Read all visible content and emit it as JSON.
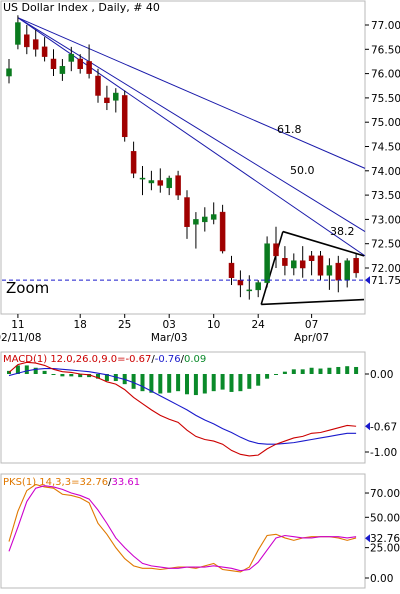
{
  "title": "US Dollar Index , Daily, # 40",
  "zoom_label": "Zoom",
  "price_tag": "71.75",
  "fib_labels": [
    "61.8",
    "50.0",
    "38.2"
  ],
  "date_labels": [
    {
      "top": "11",
      "bottom": "02/11/08"
    },
    {
      "top": "18",
      "bottom": ""
    },
    {
      "top": "25",
      "bottom": ""
    },
    {
      "top": "03",
      "bottom": "Mar/03"
    },
    {
      "top": "10",
      "bottom": ""
    },
    {
      "top": "24",
      "bottom": ""
    },
    {
      "top": "07",
      "bottom": "Apr/07"
    }
  ],
  "macd_label": {
    "prefix": "MACD(1) 12.0,26.0,9.0=",
    "v1": "-0.67",
    "v2": "-0.76",
    "v3": "0.09"
  },
  "pks_label": {
    "prefix": "PKS(1) 14,3,3=",
    "v1": "32.76",
    "v2": "33.61"
  },
  "colors": {
    "up": "#0a7a1e",
    "down": "#a00000",
    "macd_line": "#cc0000",
    "signal_line": "#1a1acc",
    "histogram": "#0a8a2a",
    "k_line": "#e07800",
    "d_line": "#cc00cc",
    "fan": "#1a1aaa",
    "dashed": "#1a1acc"
  },
  "chart_data": [
    {
      "type": "candlestick",
      "title": "US Dollar Index , Daily, # 40",
      "ylim": [
        71.0,
        77.3
      ],
      "yticks": [
        "77.00",
        "76.50",
        "76.00",
        "75.50",
        "75.00",
        "74.50",
        "74.00",
        "73.50",
        "73.00",
        "72.50",
        "72.00"
      ],
      "reference_line": 71.75,
      "fibonacci_fan": [
        "61.8",
        "50.0",
        "38.2"
      ],
      "candles": [
        {
          "o": 75.95,
          "h": 76.3,
          "l": 75.8,
          "c": 76.1
        },
        {
          "o": 76.6,
          "h": 77.2,
          "l": 76.5,
          "c": 77.05
        },
        {
          "o": 76.8,
          "h": 77.0,
          "l": 76.4,
          "c": 76.55
        },
        {
          "o": 76.7,
          "h": 76.9,
          "l": 76.35,
          "c": 76.5
        },
        {
          "o": 76.55,
          "h": 76.75,
          "l": 76.25,
          "c": 76.35
        },
        {
          "o": 76.3,
          "h": 76.5,
          "l": 75.95,
          "c": 76.1
        },
        {
          "o": 76.0,
          "h": 76.3,
          "l": 75.85,
          "c": 76.15
        },
        {
          "o": 76.25,
          "h": 76.55,
          "l": 76.05,
          "c": 76.4
        },
        {
          "o": 76.3,
          "h": 76.4,
          "l": 76.0,
          "c": 76.1
        },
        {
          "o": 76.25,
          "h": 76.6,
          "l": 75.9,
          "c": 76.0
        },
        {
          "o": 75.95,
          "h": 76.1,
          "l": 75.4,
          "c": 75.55
        },
        {
          "o": 75.5,
          "h": 75.75,
          "l": 75.25,
          "c": 75.4
        },
        {
          "o": 75.45,
          "h": 75.7,
          "l": 75.2,
          "c": 75.6
        },
        {
          "o": 75.55,
          "h": 75.65,
          "l": 74.6,
          "c": 74.7
        },
        {
          "o": 74.4,
          "h": 74.6,
          "l": 73.85,
          "c": 73.95
        },
        {
          "o": 73.85,
          "h": 74.1,
          "l": 73.5,
          "c": 73.85
        },
        {
          "o": 73.75,
          "h": 74.0,
          "l": 73.6,
          "c": 73.8
        },
        {
          "o": 73.8,
          "h": 74.05,
          "l": 73.55,
          "c": 73.7
        },
        {
          "o": 73.65,
          "h": 73.9,
          "l": 73.5,
          "c": 73.85
        },
        {
          "o": 73.9,
          "h": 74.0,
          "l": 73.4,
          "c": 73.5
        },
        {
          "o": 73.45,
          "h": 73.6,
          "l": 72.6,
          "c": 72.85
        },
        {
          "o": 72.9,
          "h": 73.15,
          "l": 72.4,
          "c": 73.0
        },
        {
          "o": 72.95,
          "h": 73.25,
          "l": 72.75,
          "c": 73.05
        },
        {
          "o": 73.0,
          "h": 73.35,
          "l": 72.9,
          "c": 73.1
        },
        {
          "o": 73.15,
          "h": 73.3,
          "l": 72.3,
          "c": 72.35
        },
        {
          "o": 72.1,
          "h": 72.25,
          "l": 71.65,
          "c": 71.8
        },
        {
          "o": 71.75,
          "h": 71.95,
          "l": 71.4,
          "c": 71.65
        },
        {
          "o": 71.55,
          "h": 71.85,
          "l": 71.35,
          "c": 71.55
        },
        {
          "o": 71.55,
          "h": 71.75,
          "l": 71.4,
          "c": 71.7
        },
        {
          "o": 71.7,
          "h": 72.65,
          "l": 71.6,
          "c": 72.5
        },
        {
          "o": 72.5,
          "h": 72.85,
          "l": 72.0,
          "c": 72.25
        },
        {
          "o": 72.2,
          "h": 72.45,
          "l": 71.85,
          "c": 72.05
        },
        {
          "o": 72.0,
          "h": 72.3,
          "l": 71.85,
          "c": 72.15
        },
        {
          "o": 72.15,
          "h": 72.45,
          "l": 71.8,
          "c": 72.0
        },
        {
          "o": 72.25,
          "h": 72.35,
          "l": 71.85,
          "c": 72.15
        },
        {
          "o": 72.25,
          "h": 72.35,
          "l": 71.75,
          "c": 71.85
        },
        {
          "o": 71.85,
          "h": 72.2,
          "l": 71.55,
          "c": 72.05
        },
        {
          "o": 72.1,
          "h": 72.25,
          "l": 71.5,
          "c": 71.75
        },
        {
          "o": 71.75,
          "h": 72.2,
          "l": 71.6,
          "c": 72.15
        },
        {
          "o": 72.2,
          "h": 72.3,
          "l": 71.8,
          "c": 71.9
        }
      ]
    },
    {
      "type": "line",
      "title": "MACD(1) 12.0,26.0,9.0",
      "ylim": [
        -1.15,
        0.35
      ],
      "yticks": [
        "0.00",
        "-1.00"
      ],
      "last_value_tag": "-0.67",
      "series": [
        {
          "name": "MACD",
          "values": [
            0.02,
            0.12,
            0.15,
            0.14,
            0.11,
            0.06,
            0.03,
            0.02,
            0.0,
            -0.01,
            -0.05,
            -0.1,
            -0.13,
            -0.2,
            -0.3,
            -0.38,
            -0.46,
            -0.53,
            -0.58,
            -0.62,
            -0.72,
            -0.8,
            -0.84,
            -0.86,
            -0.9,
            -0.98,
            -1.03,
            -1.05,
            -1.04,
            -0.96,
            -0.9,
            -0.86,
            -0.82,
            -0.8,
            -0.76,
            -0.75,
            -0.72,
            -0.69,
            -0.66,
            -0.67
          ]
        },
        {
          "name": "Signal",
          "values": [
            -0.02,
            0.01,
            0.04,
            0.06,
            0.07,
            0.07,
            0.06,
            0.05,
            0.04,
            0.03,
            0.01,
            -0.01,
            -0.04,
            -0.07,
            -0.11,
            -0.16,
            -0.22,
            -0.28,
            -0.34,
            -0.4,
            -0.46,
            -0.53,
            -0.59,
            -0.64,
            -0.7,
            -0.75,
            -0.81,
            -0.86,
            -0.89,
            -0.9,
            -0.9,
            -0.89,
            -0.88,
            -0.86,
            -0.84,
            -0.82,
            -0.8,
            -0.78,
            -0.76,
            -0.76
          ]
        },
        {
          "name": "Histogram",
          "values": [
            0.04,
            0.11,
            0.11,
            0.08,
            0.04,
            -0.01,
            -0.03,
            -0.03,
            -0.04,
            -0.04,
            -0.06,
            -0.09,
            -0.09,
            -0.13,
            -0.19,
            -0.22,
            -0.24,
            -0.25,
            -0.24,
            -0.22,
            -0.26,
            -0.27,
            -0.25,
            -0.22,
            -0.2,
            -0.23,
            -0.22,
            -0.19,
            -0.15,
            -0.06,
            0.0,
            0.03,
            0.06,
            0.06,
            0.08,
            0.07,
            0.08,
            0.09,
            0.1,
            0.09
          ]
        }
      ]
    },
    {
      "type": "line",
      "title": "PKS(1) 14,3,3",
      "ylim": [
        -8,
        88
      ],
      "yticks": [
        "70.00",
        "50.00",
        "25.00",
        "0.00"
      ],
      "last_value_tag": "32.76",
      "series": [
        {
          "name": "%K",
          "values": [
            30,
            55,
            72,
            77,
            75,
            74,
            69,
            68,
            66,
            62,
            45,
            36,
            25,
            16,
            10,
            8,
            8,
            7,
            8,
            9,
            9,
            8,
            10,
            12,
            7,
            6,
            5,
            9,
            23,
            35,
            36,
            33,
            31,
            33,
            34,
            34,
            34,
            33,
            31,
            33
          ]
        },
        {
          "name": "%D",
          "values": [
            22,
            42,
            63,
            74,
            76,
            75,
            73,
            70,
            68,
            65,
            56,
            45,
            33,
            25,
            18,
            12,
            10,
            9,
            8,
            8,
            9,
            9,
            9,
            10,
            9,
            8,
            6,
            7,
            13,
            23,
            33,
            35,
            34,
            33,
            33,
            34,
            34,
            34,
            33,
            34
          ]
        }
      ]
    }
  ]
}
